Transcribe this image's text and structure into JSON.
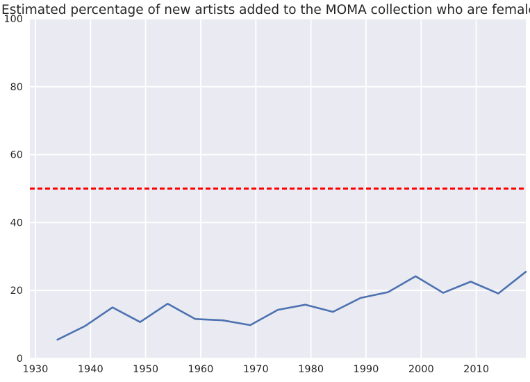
{
  "chart_data": {
    "type": "line",
    "title": "Estimated percentage of new artists added to the MOMA collection who are female",
    "xlabel": "",
    "ylabel": "",
    "xlim": [
      1929,
      2019
    ],
    "ylim": [
      0,
      100
    ],
    "x_ticks": [
      1930,
      1940,
      1950,
      1960,
      1970,
      1980,
      1990,
      2000,
      2010
    ],
    "y_ticks": [
      0,
      20,
      40,
      60,
      80,
      100
    ],
    "grid": true,
    "series": [
      {
        "color": "#4c72b0",
        "x": [
          1934,
          1939,
          1944,
          1949,
          1954,
          1959,
          1964,
          1969,
          1974,
          1979,
          1984,
          1989,
          1994,
          1999,
          2004,
          2009,
          2014,
          2019
        ],
        "y": [
          5.5,
          9.5,
          15.0,
          10.7,
          16.1,
          11.6,
          11.2,
          9.8,
          14.3,
          15.8,
          13.7,
          17.8,
          19.5,
          24.2,
          19.3,
          22.6,
          19.1,
          25.5
        ]
      }
    ],
    "reference_lines": [
      {
        "y": 50,
        "color": "#ff0000",
        "style": "dashed"
      }
    ],
    "colors": {
      "background": "#eaeaf2",
      "grid": "#ffffff"
    }
  }
}
